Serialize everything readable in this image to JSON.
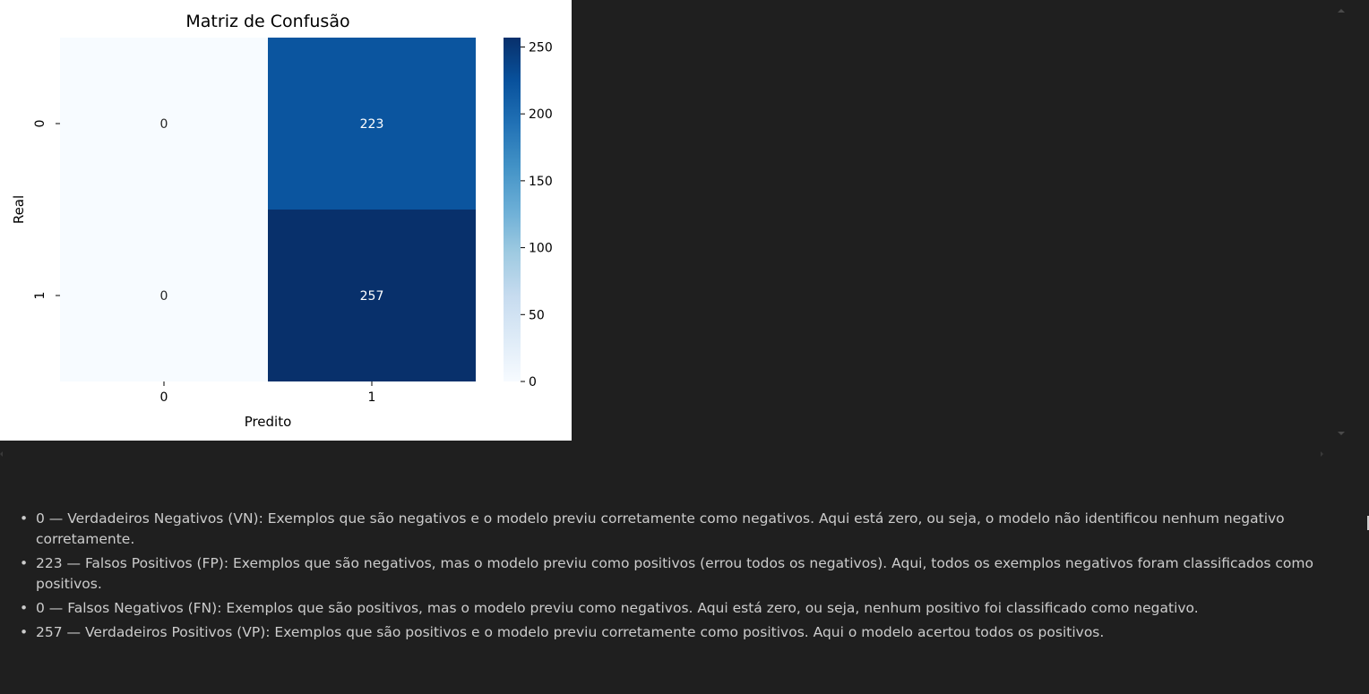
{
  "figure": {
    "chart_data": {
      "type": "heatmap",
      "title": "Matriz de Confusão",
      "xlabel": "Predito",
      "ylabel": "Real",
      "x_categories": [
        "0",
        "1"
      ],
      "y_categories": [
        "0",
        "1"
      ],
      "values": [
        [
          0,
          223
        ],
        [
          0,
          257
        ]
      ],
      "colormap": "Blues",
      "colorbar_range": [
        0,
        257
      ],
      "colorbar_ticks": [
        "0",
        "50",
        "100",
        "150",
        "200",
        "250"
      ],
      "colors": {
        "cell_0_0": "#f7fbff",
        "cell_0_1": "#0b559f",
        "cell_1_0": "#f7fbff",
        "cell_1_1": "#08306b"
      }
    }
  },
  "markdown": {
    "bullet": "•",
    "items": [
      "0 — Verdadeiros Negativos (VN): Exemplos que são negativos e o modelo previu corretamente como negativos. Aqui está zero, ou seja, o modelo não identificou nenhum negativo corretamente.",
      "223 — Falsos Positivos (FP): Exemplos que são negativos, mas o modelo previu como positivos (errou todos os negativos). Aqui, todos os exemplos negativos foram classificados como positivos.",
      "0 — Falsos Negativos (FN): Exemplos que são positivos, mas o modelo previu como negativos. Aqui está zero, ou seja, nenhum positivo foi classificado como negativo.",
      "257 — Verdadeiros Positivos (VP): Exemplos que são positivos e o modelo previu corretamente como positivos. Aqui o modelo acertou todos os positivos."
    ]
  }
}
